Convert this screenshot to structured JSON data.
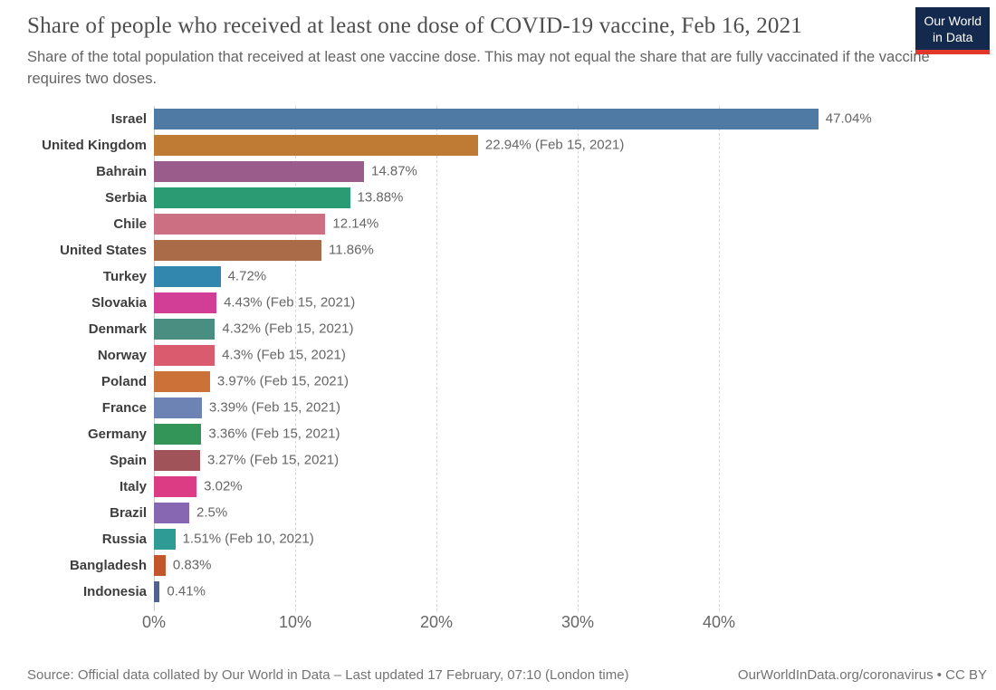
{
  "header": {
    "title": "Share of people who received at least one dose of COVID-19 vaccine, Feb 16, 2021",
    "subtitle": "Share of the total population that received at least one vaccine dose. This may not equal the share that are fully vaccinated if the vaccine requires two doses."
  },
  "logo": {
    "line1": "Our World",
    "line2": "in Data",
    "bg_color": "#13294d",
    "accent_color": "#e0362c"
  },
  "chart_data": {
    "type": "bar",
    "orientation": "horizontal",
    "title": "Share of people who received at least one dose of COVID-19 vaccine, Feb 16, 2021",
    "categories": [
      "Israel",
      "United Kingdom",
      "Bahrain",
      "Serbia",
      "Chile",
      "United States",
      "Turkey",
      "Slovakia",
      "Denmark",
      "Norway",
      "Poland",
      "France",
      "Germany",
      "Spain",
      "Italy",
      "Brazil",
      "Russia",
      "Bangladesh",
      "Indonesia"
    ],
    "values": [
      47.04,
      22.94,
      14.87,
      13.88,
      12.14,
      11.86,
      4.72,
      4.43,
      4.32,
      4.3,
      3.97,
      3.39,
      3.36,
      3.27,
      3.02,
      2.5,
      1.51,
      0.83,
      0.41
    ],
    "value_labels": [
      "47.04%",
      "22.94% (Feb 15, 2021)",
      "14.87%",
      "13.88%",
      "12.14%",
      "11.86%",
      "4.72%",
      "4.43% (Feb 15, 2021)",
      "4.32% (Feb 15, 2021)",
      "4.3% (Feb 15, 2021)",
      "3.97% (Feb 15, 2021)",
      "3.39% (Feb 15, 2021)",
      "3.36% (Feb 15, 2021)",
      "3.27% (Feb 15, 2021)",
      "3.02%",
      "2.5%",
      "1.51% (Feb 10, 2021)",
      "0.83%",
      "0.41%"
    ],
    "bar_colors": [
      "#4e7aa3",
      "#bf7b34",
      "#9a5c8a",
      "#2b9b74",
      "#cc6f82",
      "#a96b48",
      "#3187ae",
      "#d23e96",
      "#4a8d81",
      "#da5a6e",
      "#cc7138",
      "#6d83b4",
      "#339658",
      "#a05459",
      "#dc3c83",
      "#8767b2",
      "#2e9c95",
      "#c2552b",
      "#51628f"
    ],
    "x_ticks": [
      "0%",
      "10%",
      "20%",
      "30%",
      "40%"
    ],
    "x_tick_values": [
      0,
      10,
      20,
      30,
      40
    ],
    "xlim": [
      0,
      57
    ],
    "grid": "vertical-dashed",
    "legend": "none"
  },
  "footer": {
    "source": "Source: Official data collated by Our World in Data – Last updated 17 February, 07:10 (London time)",
    "link": "OurWorldInData.org/coronavirus • CC BY"
  }
}
